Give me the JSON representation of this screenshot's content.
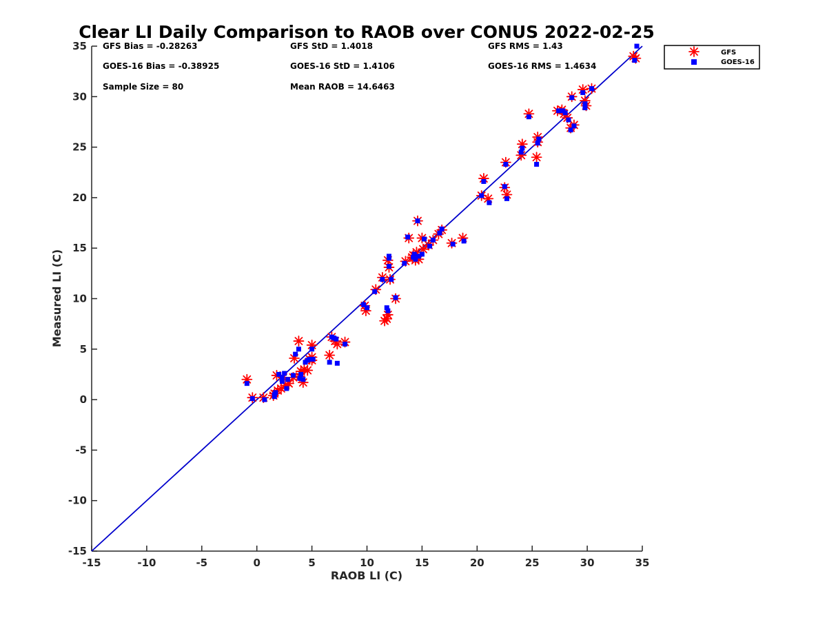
{
  "chart_data": {
    "type": "scatter",
    "title": "Clear LI Daily Comparison to RAOB over CONUS 2022-02-25",
    "xlabel": "RAOB LI (C)",
    "ylabel": "Measured LI (C)",
    "xlim": [
      -15,
      35
    ],
    "ylim": [
      -15,
      35
    ],
    "xticks": [
      "-15",
      "-10",
      "-5",
      "0",
      "5",
      "10",
      "15",
      "20",
      "25",
      "30",
      "35"
    ],
    "yticks": [
      "-15",
      "-10",
      "-5",
      "0",
      "5",
      "10",
      "15",
      "20",
      "25",
      "30",
      "35"
    ],
    "grid": false,
    "legend_position": "outside top-right",
    "stats": {
      "gfs_bias": "GFS Bias = -0.28263",
      "gfs_std": "GFS StD = 1.4018",
      "gfs_rms": "GFS RMS = 1.43",
      "goes_bias": "GOES-16 Bias = -0.38925",
      "goes_std": "GOES-16 StD = 1.4106",
      "goes_rms": "GOES-16 RMS = 1.4634",
      "sample_size": "Sample Size = 80",
      "mean_raob": "Mean RAOB = 14.6463"
    },
    "reference_line": {
      "name": "1:1 line",
      "x": [
        -15,
        35
      ],
      "y": [
        -15,
        35
      ],
      "color": "#0000cc"
    },
    "series": [
      {
        "name": "GFS",
        "marker": "asterisk",
        "color": "#ff0000",
        "points": [
          [
            -0.9,
            2.0
          ],
          [
            -0.4,
            0.2
          ],
          [
            0.6,
            0.2
          ],
          [
            1.6,
            0.6
          ],
          [
            1.8,
            2.4
          ],
          [
            1.9,
            0.9
          ],
          [
            2.2,
            1.1
          ],
          [
            2.4,
            2.2
          ],
          [
            2.6,
            1.4
          ],
          [
            2.9,
            1.6
          ],
          [
            3.3,
            2.2
          ],
          [
            3.4,
            4.1
          ],
          [
            3.8,
            5.8
          ],
          [
            4.0,
            2.8
          ],
          [
            4.2,
            1.7
          ],
          [
            4.3,
            3.0
          ],
          [
            4.6,
            2.9
          ],
          [
            4.8,
            4.0
          ],
          [
            5.0,
            5.4
          ],
          [
            5.0,
            4.2
          ],
          [
            6.6,
            4.4
          ],
          [
            6.8,
            6.2
          ],
          [
            7.1,
            5.8
          ],
          [
            7.3,
            5.5
          ],
          [
            8.0,
            5.7
          ],
          [
            9.8,
            9.3
          ],
          [
            9.9,
            8.8
          ],
          [
            10.8,
            10.9
          ],
          [
            11.4,
            12.1
          ],
          [
            11.6,
            7.8
          ],
          [
            11.8,
            8.0
          ],
          [
            11.9,
            8.4
          ],
          [
            11.9,
            13.8
          ],
          [
            12.0,
            13.1
          ],
          [
            12.1,
            11.9
          ],
          [
            12.6,
            10.0
          ],
          [
            13.5,
            13.7
          ],
          [
            13.8,
            16.0
          ],
          [
            14.2,
            14.3
          ],
          [
            14.4,
            13.8
          ],
          [
            14.5,
            14.6
          ],
          [
            14.6,
            17.7
          ],
          [
            14.7,
            13.9
          ],
          [
            15.0,
            16.0
          ],
          [
            15.1,
            14.9
          ],
          [
            15.6,
            15.3
          ],
          [
            16.0,
            15.8
          ],
          [
            16.5,
            16.4
          ],
          [
            16.8,
            16.8
          ],
          [
            17.7,
            15.5
          ],
          [
            18.7,
            16.0
          ],
          [
            20.4,
            20.2
          ],
          [
            20.6,
            21.9
          ],
          [
            21.0,
            19.9
          ],
          [
            22.5,
            21.0
          ],
          [
            22.6,
            23.5
          ],
          [
            22.7,
            20.3
          ],
          [
            24.0,
            24.2
          ],
          [
            24.1,
            25.3
          ],
          [
            24.7,
            28.3
          ],
          [
            25.4,
            24.0
          ],
          [
            25.5,
            26.0
          ],
          [
            25.5,
            25.5
          ],
          [
            27.3,
            28.6
          ],
          [
            27.7,
            28.7
          ],
          [
            27.9,
            28.3
          ],
          [
            28.2,
            27.9
          ],
          [
            28.5,
            26.9
          ],
          [
            28.6,
            30.0
          ],
          [
            28.8,
            27.2
          ],
          [
            29.6,
            30.7
          ],
          [
            29.8,
            29.6
          ],
          [
            29.9,
            29.1
          ],
          [
            30.4,
            30.8
          ],
          [
            34.2,
            34.0
          ],
          [
            34.4,
            33.8
          ],
          [
            14.1,
            14.1
          ],
          [
            5.0,
            3.9
          ],
          [
            1.5,
            0.4
          ],
          [
            3.9,
            2.3
          ]
        ]
      },
      {
        "name": "GOES-16",
        "marker": "square",
        "color": "#0000ff",
        "points": [
          [
            -0.9,
            1.6
          ],
          [
            -0.4,
            0.1
          ],
          [
            0.7,
            0.0
          ],
          [
            1.6,
            0.3
          ],
          [
            1.7,
            0.7
          ],
          [
            2.0,
            2.5
          ],
          [
            2.3,
            2.2
          ],
          [
            2.5,
            2.6
          ],
          [
            2.7,
            1.1
          ],
          [
            2.8,
            2.0
          ],
          [
            3.3,
            2.4
          ],
          [
            3.5,
            4.5
          ],
          [
            3.8,
            5.0
          ],
          [
            4.0,
            2.5
          ],
          [
            4.2,
            2.0
          ],
          [
            4.4,
            3.7
          ],
          [
            4.8,
            4.0
          ],
          [
            5.0,
            5.0
          ],
          [
            5.1,
            4.0
          ],
          [
            6.6,
            3.7
          ],
          [
            6.8,
            6.2
          ],
          [
            7.0,
            6.1
          ],
          [
            7.2,
            6.0
          ],
          [
            7.3,
            3.6
          ],
          [
            8.0,
            5.5
          ],
          [
            9.7,
            9.4
          ],
          [
            10.0,
            9.1
          ],
          [
            10.7,
            10.7
          ],
          [
            11.4,
            11.9
          ],
          [
            11.8,
            9.1
          ],
          [
            11.9,
            8.8
          ],
          [
            12.0,
            13.2
          ],
          [
            12.0,
            14.2
          ],
          [
            12.2,
            11.9
          ],
          [
            12.6,
            10.1
          ],
          [
            13.4,
            13.5
          ],
          [
            13.7,
            16.1
          ],
          [
            14.3,
            14.4
          ],
          [
            14.4,
            13.9
          ],
          [
            14.6,
            17.7
          ],
          [
            14.7,
            14.2
          ],
          [
            15.0,
            14.4
          ],
          [
            15.2,
            15.9
          ],
          [
            15.7,
            15.2
          ],
          [
            16.0,
            15.8
          ],
          [
            16.6,
            16.5
          ],
          [
            16.8,
            16.9
          ],
          [
            17.8,
            15.4
          ],
          [
            18.8,
            15.7
          ],
          [
            20.4,
            20.2
          ],
          [
            20.6,
            21.6
          ],
          [
            21.1,
            19.5
          ],
          [
            22.5,
            21.1
          ],
          [
            22.6,
            23.3
          ],
          [
            22.7,
            19.9
          ],
          [
            24.0,
            24.5
          ],
          [
            24.1,
            24.9
          ],
          [
            24.7,
            28.0
          ],
          [
            25.4,
            23.3
          ],
          [
            25.5,
            25.4
          ],
          [
            25.6,
            25.8
          ],
          [
            27.4,
            28.6
          ],
          [
            27.8,
            28.6
          ],
          [
            28.0,
            28.4
          ],
          [
            28.3,
            27.7
          ],
          [
            28.5,
            26.7
          ],
          [
            28.6,
            29.9
          ],
          [
            28.8,
            27.1
          ],
          [
            29.6,
            30.4
          ],
          [
            29.8,
            29.3
          ],
          [
            29.8,
            28.9
          ],
          [
            30.4,
            30.8
          ],
          [
            34.3,
            33.6
          ],
          [
            34.5,
            35.0
          ],
          [
            14.2,
            14.1
          ],
          [
            1.6,
            0.5
          ],
          [
            3.9,
            2.1
          ],
          [
            2.3,
            1.8
          ],
          [
            4.6,
            3.9
          ],
          [
            12.0,
            14.0
          ]
        ]
      }
    ]
  }
}
